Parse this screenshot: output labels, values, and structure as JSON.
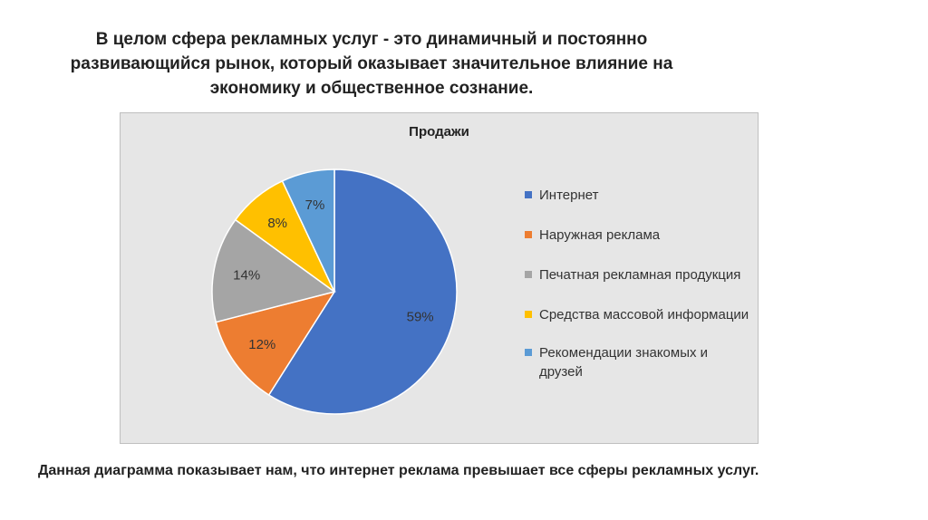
{
  "heading": {
    "lines": [
      "В целом сфера рекламных услуг - это динамичный и постоянно",
      "развивающийся рынок, который оказывает значительное влияние на",
      "экономику и общественное сознание."
    ]
  },
  "caption": "Данная диаграмма показывает нам,  что интернет реклама превышает все сферы рекламных услуг.",
  "chart_data": {
    "type": "pie",
    "title": "Продажи",
    "legend_position": "right",
    "slices": [
      {
        "label": "Интернет",
        "value": 59,
        "display": "59%",
        "color": "#4472C4"
      },
      {
        "label": "Наружная реклама",
        "value": 12,
        "display": "12%",
        "color": "#ED7D31"
      },
      {
        "label": "Печатная рекламная продукция",
        "value": 14,
        "display": "14%",
        "color": "#A5A5A5"
      },
      {
        "label": "Средства массовой информации",
        "value": 8,
        "display": "8%",
        "color": "#FFC000"
      },
      {
        "label": "Рекомендации знакомых и друзей",
        "value": 7,
        "display": "7%",
        "color": "#5B9BD5"
      }
    ]
  }
}
